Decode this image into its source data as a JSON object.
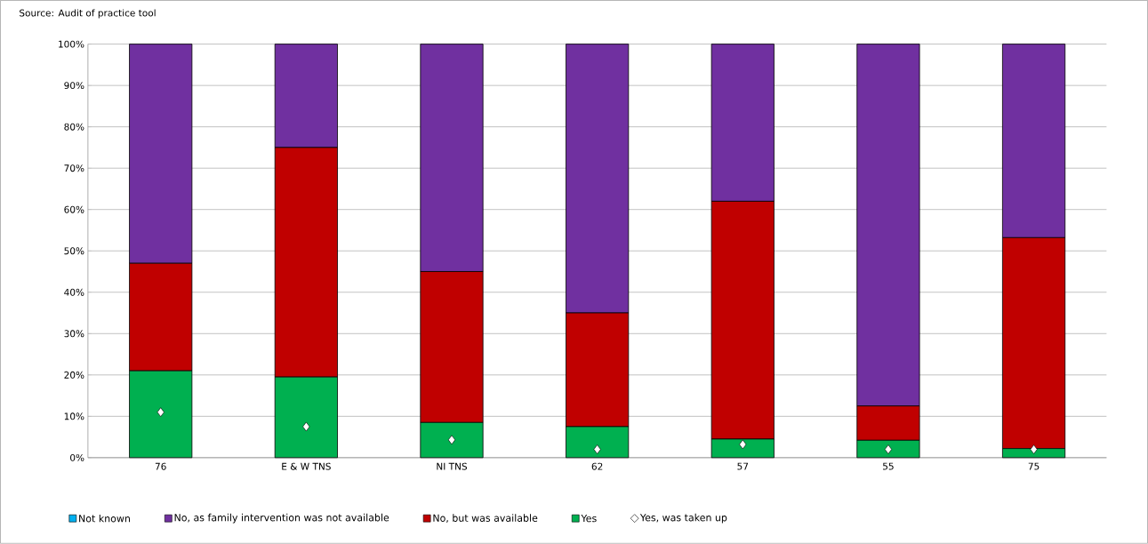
{
  "chart_data": {
    "type": "bar",
    "stacked": true,
    "annotations": [
      "Source: Audit of practice tool"
    ],
    "categories": [
      "76",
      "E & W TNS",
      "NI TNS",
      "62",
      "57",
      "55",
      "75"
    ],
    "series": [
      {
        "name": "Yes",
        "color": "#00b050",
        "values": [
          21,
          19.5,
          8.5,
          7.5,
          4.5,
          4.2,
          2.2
        ]
      },
      {
        "name": "No, but was available",
        "color": "#c00000",
        "values": [
          26,
          55.5,
          36.5,
          27.5,
          57.5,
          8.3,
          51
        ]
      },
      {
        "name": "No, as family intervention was not available",
        "color": "#7030a0",
        "values": [
          53,
          25,
          55,
          65,
          38,
          87.5,
          46.8
        ]
      },
      {
        "name": "Not known",
        "color": "#00b0f0",
        "values": [
          0,
          0,
          0,
          0,
          0,
          0,
          0
        ]
      },
      {
        "name": "Yes, was taken up",
        "type": "scatter",
        "marker": "diamond",
        "color": "#ffffff",
        "values": [
          11,
          7.5,
          4.3,
          2,
          3.2,
          2,
          2
        ]
      }
    ],
    "ylim": [
      0,
      100
    ],
    "yticks": [
      {
        "value": 0,
        "label": "0%"
      },
      {
        "value": 10,
        "label": "10%"
      },
      {
        "value": 20,
        "label": "20%"
      },
      {
        "value": 30,
        "label": "30%"
      },
      {
        "value": 40,
        "label": "40%"
      },
      {
        "value": 50,
        "label": "50%"
      },
      {
        "value": 60,
        "label": "60%"
      },
      {
        "value": 70,
        "label": "70%"
      },
      {
        "value": 80,
        "label": "80%"
      },
      {
        "value": 90,
        "label": "90%"
      },
      {
        "value": 100,
        "label": "100%"
      }
    ],
    "grid": "y",
    "legend": "bottom"
  }
}
